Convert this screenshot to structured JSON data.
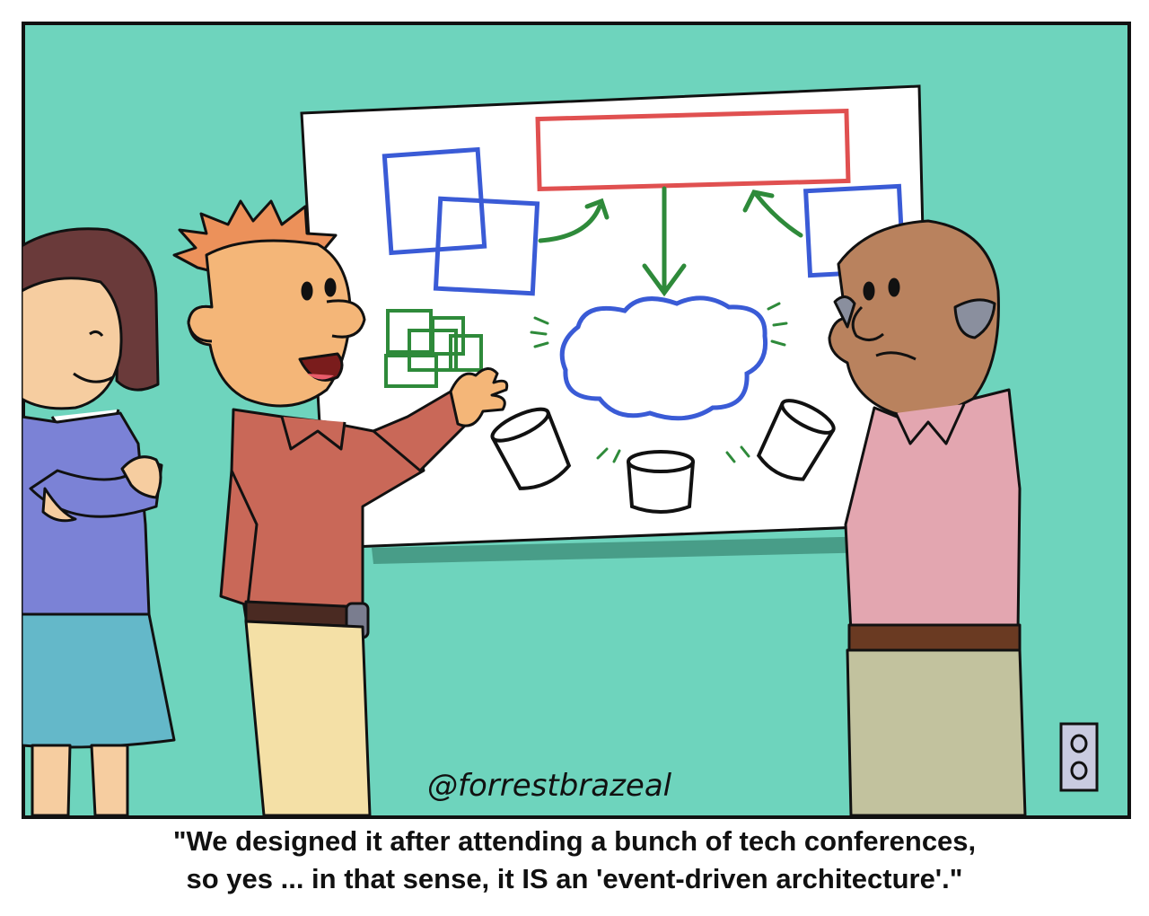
{
  "comic": {
    "signature": "@forrestbrazeal",
    "caption": {
      "line1": "\"We designed it after attending a bunch of tech conferences,",
      "line2": "so yes ... in that sense, it IS an 'event-driven architecture'.\""
    }
  },
  "colors": {
    "wall": "#6ed4bd",
    "board": "#ffffff",
    "outline": "#111111",
    "red_box": "#e05050",
    "blue_box": "#3a5bd6",
    "green_box": "#2e8a3a",
    "cloud": "#3a5bd6"
  },
  "icons": [
    "whiteboard",
    "diagram-boxes",
    "cloud",
    "database-cylinders",
    "wall-outlet"
  ]
}
